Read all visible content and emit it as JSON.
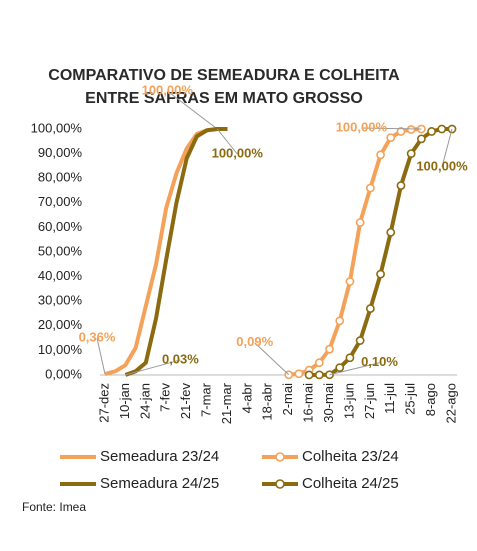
{
  "chart_data": {
    "type": "line",
    "title": [
      "COMPARATIVO DE SEMEADURA E COLHEITA",
      "ENTRE SAFRAS EM MATO GROSSO"
    ],
    "source": "Fonte: Imea",
    "categories": [
      "27-dez",
      null,
      "10-jan",
      null,
      "24-jan",
      null,
      "7-fev",
      null,
      "21-fev",
      null,
      "7-mar",
      null,
      "21-mar",
      null,
      "4-abr",
      null,
      "18-abr",
      null,
      "2-mai",
      null,
      "16-mai",
      null,
      "30-mai",
      null,
      "13-jun",
      null,
      "27-jun",
      null,
      "11-jul",
      null,
      "25-jul",
      null,
      "8-ago",
      null,
      "22-ago"
    ],
    "ylim": [
      0,
      100
    ],
    "yticks": [
      {
        "value": 0,
        "label": "0,00%"
      },
      {
        "value": 10,
        "label": "10,00%"
      },
      {
        "value": 20,
        "label": "20,00%"
      },
      {
        "value": 30,
        "label": "30,00%"
      },
      {
        "value": 40,
        "label": "40,00%"
      },
      {
        "value": 50,
        "label": "50,00%"
      },
      {
        "value": 60,
        "label": "60,00%"
      },
      {
        "value": 70,
        "label": "70,00%"
      },
      {
        "value": 80,
        "label": "80,00%"
      },
      {
        "value": 90,
        "label": "90,00%"
      },
      {
        "value": 100,
        "label": "100,00%"
      }
    ],
    "series": [
      {
        "name": "Semeadura 23/24",
        "color": "#f4a259",
        "marker": false,
        "values": [
          0.36,
          1.5,
          4,
          11,
          28,
          45,
          68,
          82,
          92,
          98,
          99.5,
          100,
          100,
          null,
          null,
          null,
          null,
          null,
          null,
          null,
          null,
          null,
          null,
          null,
          null,
          null,
          null,
          null,
          null,
          null,
          null,
          null,
          null,
          null,
          null
        ],
        "value_labels": [
          "0,36%",
          null,
          null,
          null,
          null,
          null,
          null,
          null,
          null,
          null,
          null,
          "100,00%",
          null,
          null,
          null,
          null,
          null,
          null,
          null,
          null,
          null,
          null,
          null,
          null,
          null,
          null,
          null,
          null,
          null,
          null,
          null,
          null,
          null,
          null,
          null
        ]
      },
      {
        "name": "Colheita 23/24",
        "color": "#f4a259",
        "marker": true,
        "values": [
          null,
          null,
          null,
          null,
          null,
          null,
          null,
          null,
          null,
          null,
          null,
          null,
          null,
          null,
          null,
          null,
          null,
          null,
          0.09,
          0.5,
          2,
          5,
          10.5,
          22,
          38,
          62,
          76,
          89.5,
          96.5,
          99,
          99.8,
          100,
          null,
          null,
          null
        ],
        "value_labels": [
          null,
          null,
          null,
          null,
          null,
          null,
          null,
          null,
          null,
          null,
          null,
          null,
          null,
          null,
          null,
          null,
          null,
          null,
          "0,09%",
          null,
          null,
          null,
          null,
          null,
          null,
          null,
          null,
          null,
          null,
          null,
          null,
          "100,00%",
          null,
          null,
          null
        ]
      },
      {
        "name": "Semeadura 24/25",
        "color": "#8b6a10",
        "marker": false,
        "values": [
          null,
          null,
          0.03,
          1.5,
          5,
          23,
          47,
          70,
          88,
          97,
          99.5,
          100,
          100,
          null,
          null,
          null,
          null,
          null,
          null,
          null,
          null,
          null,
          null,
          null,
          null,
          null,
          null,
          null,
          null,
          null,
          null,
          null,
          null,
          null,
          null
        ],
        "value_labels": [
          null,
          null,
          "0,03%",
          null,
          null,
          null,
          null,
          null,
          null,
          null,
          null,
          "100,00%",
          null,
          null,
          null,
          null,
          null,
          null,
          null,
          null,
          null,
          null,
          null,
          null,
          null,
          null,
          null,
          null,
          null,
          null,
          null,
          null,
          null,
          null,
          null
        ]
      },
      {
        "name": "Colheita 24/25",
        "color": "#8b6a10",
        "marker": true,
        "values": [
          null,
          null,
          null,
          null,
          null,
          null,
          null,
          null,
          null,
          null,
          null,
          null,
          null,
          null,
          null,
          null,
          null,
          null,
          null,
          null,
          0.02,
          0.05,
          0.1,
          3,
          7,
          14,
          27,
          41,
          58,
          77,
          90,
          96,
          99,
          100,
          100
        ],
        "value_labels": [
          null,
          null,
          null,
          null,
          null,
          null,
          null,
          null,
          null,
          null,
          null,
          null,
          null,
          null,
          null,
          null,
          null,
          null,
          null,
          null,
          null,
          null,
          "0,10%",
          null,
          null,
          null,
          null,
          null,
          null,
          null,
          null,
          null,
          null,
          null,
          "100,00%"
        ]
      }
    ]
  }
}
